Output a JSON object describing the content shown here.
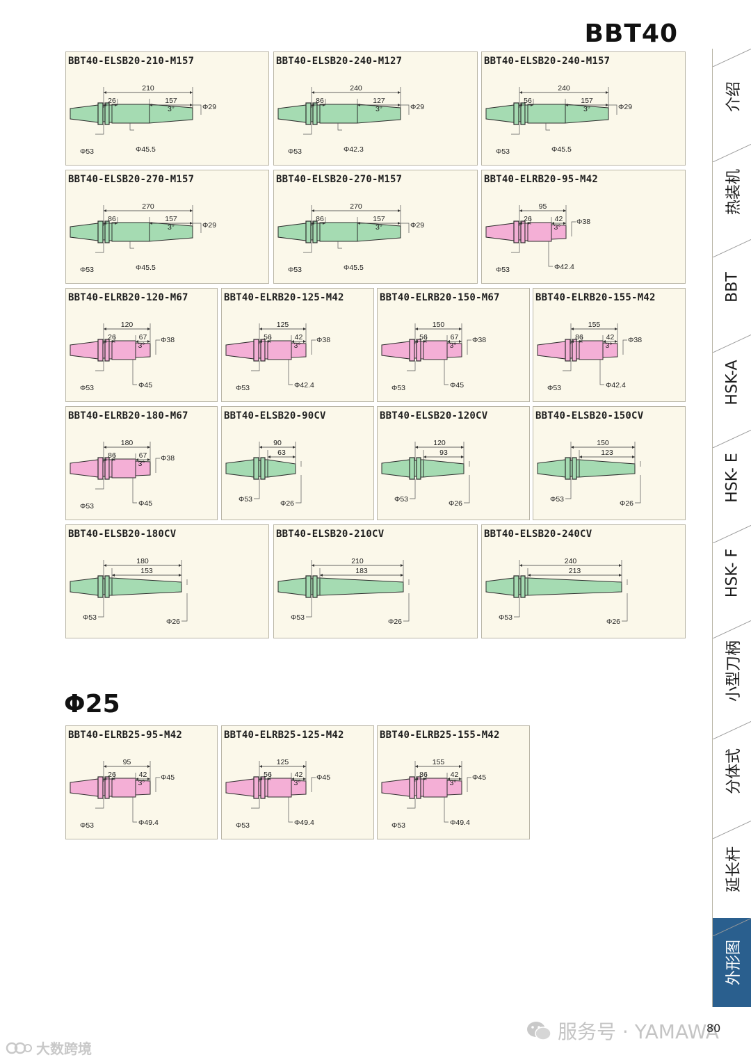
{
  "page_title": "BBT40",
  "section_title": "Φ25",
  "page_number": "80",
  "watermark_right": "服务号 · YAMAWA",
  "watermark_left": "大数跨境",
  "colors": {
    "green": "#a5dbb2",
    "pink": "#f4afd6",
    "outline": "#2c2c2c",
    "card_bg": "#fbf8ea",
    "tab_active": "#2a5f8e"
  },
  "sidebar_tabs": [
    {
      "label": "介绍",
      "active": false
    },
    {
      "label": "热装机",
      "active": false
    },
    {
      "label": "BBT",
      "active": false
    },
    {
      "label": "HSK-A",
      "active": false
    },
    {
      "label": "HSK- E",
      "active": false
    },
    {
      "label": "HSK- F",
      "active": false
    },
    {
      "label": "小型刀柄",
      "active": false
    },
    {
      "label": "分体式",
      "active": false
    },
    {
      "label": "延长杆",
      "active": false
    },
    {
      "label": "外形图",
      "active": true
    }
  ],
  "cards": [
    {
      "label": "BBT40-ELSB20-210-M157",
      "type": "long",
      "color": "green",
      "total": "210",
      "first": "26",
      "second": "157",
      "angle": "3°",
      "flange": "Φ53",
      "body": "Φ45.5",
      "tip": "Φ29"
    },
    {
      "label": "BBT40-ELSB20-240-M127",
      "type": "long",
      "color": "green",
      "total": "240",
      "first": "86",
      "second": "127",
      "angle": "3°",
      "flange": "Φ53",
      "body": "Φ42.3",
      "tip": "Φ29"
    },
    {
      "label": "BBT40-ELSB20-240-M157",
      "type": "long",
      "color": "green",
      "total": "240",
      "first": "56",
      "second": "157",
      "angle": "3°",
      "flange": "Φ53",
      "body": "Φ45.5",
      "tip": "Φ29"
    },
    {
      "label": "BBT40-ELSB20-270-M157",
      "type": "long",
      "color": "green",
      "total": "270",
      "first": "86",
      "second": "157",
      "angle": "3°",
      "flange": "Φ53",
      "body": "Φ45.5",
      "tip": "Φ29"
    },
    {
      "label": "BBT40-ELSB20-270-M157",
      "type": "long",
      "color": "green",
      "total": "270",
      "first": "86",
      "second": "157",
      "angle": "3°",
      "flange": "Φ53",
      "body": "Φ45.5",
      "tip": "Φ29"
    },
    {
      "label": "BBT40-ELRB20-95-M42",
      "type": "short",
      "color": "pink",
      "total": "95",
      "first": "26",
      "second": "42",
      "angle": "3°",
      "flange": "Φ53",
      "body": "Φ42.4",
      "tip": "Φ38"
    },
    {
      "label": "BBT40-ELRB20-120-M67",
      "type": "short",
      "color": "pink",
      "total": "120",
      "first": "26",
      "second": "67",
      "angle": "3°",
      "flange": "Φ53",
      "body": "Φ45",
      "tip": "Φ38"
    },
    {
      "label": "BBT40-ELRB20-125-M42",
      "type": "short",
      "color": "pink",
      "total": "125",
      "first": "56",
      "second": "42",
      "angle": "3°",
      "flange": "Φ53",
      "body": "Φ42.4",
      "tip": "Φ38"
    },
    {
      "label": "BBT40-ELRB20-150-M67",
      "type": "short",
      "color": "pink",
      "total": "150",
      "first": "56",
      "second": "67",
      "angle": "3°",
      "flange": "Φ53",
      "body": "Φ45",
      "tip": "Φ38"
    },
    {
      "label": "BBT40-ELRB20-155-M42",
      "type": "short",
      "color": "pink",
      "total": "155",
      "first": "86",
      "second": "42",
      "angle": "3°",
      "flange": "Φ53",
      "body": "Φ42.4",
      "tip": "Φ38"
    },
    {
      "label": "BBT40-ELRB20-180-M67",
      "type": "short",
      "color": "pink",
      "total": "180",
      "first": "86",
      "second": "67",
      "angle": "3°",
      "flange": "Φ53",
      "body": "Φ45",
      "tip": "Φ38"
    },
    {
      "label": "BBT40-ELSB20-90CV",
      "type": "cv",
      "color": "green",
      "total": "90",
      "first": "63",
      "flange": "Φ53",
      "tip": "Φ26"
    },
    {
      "label": "BBT40-ELSB20-120CV",
      "type": "cv",
      "color": "green",
      "total": "120",
      "first": "93",
      "flange": "Φ53",
      "tip": "Φ26"
    },
    {
      "label": "BBT40-ELSB20-150CV",
      "type": "cv",
      "color": "green",
      "total": "150",
      "first": "123",
      "flange": "Φ53",
      "tip": "Φ26"
    },
    {
      "label": "BBT40-ELSB20-180CV",
      "type": "cv",
      "color": "green",
      "total": "180",
      "first": "153",
      "flange": "Φ53",
      "tip": "Φ26"
    },
    {
      "label": "BBT40-ELSB20-210CV",
      "type": "cv",
      "color": "green",
      "total": "210",
      "first": "183",
      "flange": "Φ53",
      "tip": "Φ26"
    },
    {
      "label": "BBT40-ELSB20-240CV",
      "type": "cv",
      "color": "green",
      "total": "240",
      "first": "213",
      "flange": "Φ53",
      "tip": "Φ26"
    },
    {
      "label": "BBT40-ELRB25-95-M42",
      "type": "short",
      "color": "pink",
      "total": "95",
      "first": "26",
      "second": "42",
      "angle": "3°",
      "flange": "Φ53",
      "body": "Φ49.4",
      "tip": "Φ45"
    },
    {
      "label": "BBT40-ELRB25-125-M42",
      "type": "short",
      "color": "pink",
      "total": "125",
      "first": "56",
      "second": "42",
      "angle": "3°",
      "flange": "Φ53",
      "body": "Φ49.4",
      "tip": "Φ45"
    },
    {
      "label": "BBT40-ELRB25-155-M42",
      "type": "short",
      "color": "pink",
      "total": "155",
      "first": "86",
      "second": "42",
      "angle": "3°",
      "flange": "Φ53",
      "body": "Φ49.4",
      "tip": "Φ45"
    }
  ]
}
